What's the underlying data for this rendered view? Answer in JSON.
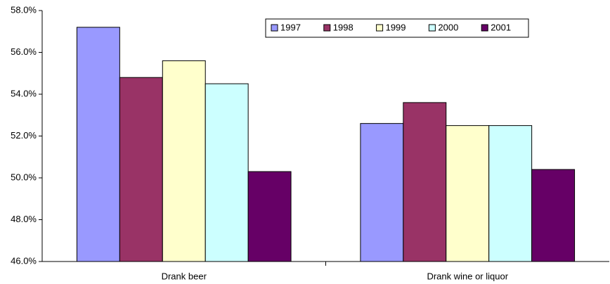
{
  "chart_data": {
    "type": "bar",
    "categories": [
      "Drank beer",
      "Drank wine or liquor"
    ],
    "series": [
      {
        "name": "1997",
        "color": "#9999ff",
        "values": [
          57.2,
          52.6
        ]
      },
      {
        "name": "1998",
        "color": "#993366",
        "values": [
          54.8,
          53.6
        ]
      },
      {
        "name": "1999",
        "color": "#ffffcc",
        "values": [
          55.6,
          52.5
        ]
      },
      {
        "name": "2000",
        "color": "#ccffff",
        "values": [
          54.5,
          52.5
        ]
      },
      {
        "name": "2001",
        "color": "#660066",
        "values": [
          50.3,
          50.4
        ]
      }
    ],
    "ylim": [
      46,
      58
    ],
    "yticks": [
      {
        "value": 46,
        "label": "46.0%"
      },
      {
        "value": 48,
        "label": "48.0%"
      },
      {
        "value": 50,
        "label": "50.0%"
      },
      {
        "value": 52,
        "label": "52.0%"
      },
      {
        "value": 54,
        "label": "54.0%"
      },
      {
        "value": 56,
        "label": "56.0%"
      },
      {
        "value": 58,
        "label": "58.0%"
      }
    ],
    "legend": "top-right"
  }
}
